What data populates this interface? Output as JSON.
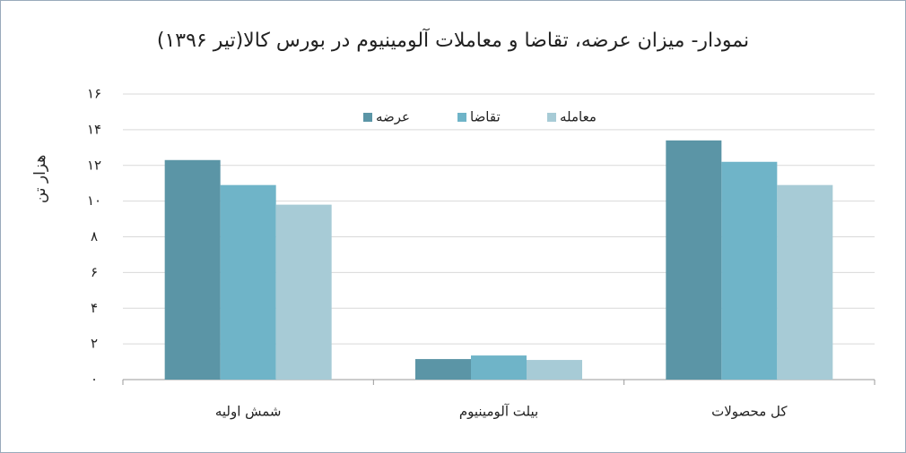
{
  "chart_data": {
    "type": "bar",
    "title": "نمودار- میزان عرضه، تقاضا و معاملات آلومینیوم در بورس کالا(تیر ۱۳۹۶)",
    "y_label": "هزار تن",
    "categories": [
      "شمش اولیه",
      "بیلت آلومینیوم",
      "کل محصولات"
    ],
    "series": [
      {
        "name": "عرضه",
        "color": "#5b95a6",
        "values": [
          12.3,
          1.15,
          13.4
        ]
      },
      {
        "name": "تقاضا",
        "color": "#6fb4c8",
        "values": [
          10.9,
          1.35,
          12.2
        ]
      },
      {
        "name": "معامله",
        "color": "#a7cbd6",
        "values": [
          9.8,
          1.1,
          10.9
        ]
      }
    ],
    "ylim": [
      0,
      16
    ],
    "yticks": [
      {
        "value": 0,
        "label": "۰"
      },
      {
        "value": 2,
        "label": "۲"
      },
      {
        "value": 4,
        "label": "۴"
      },
      {
        "value": 6,
        "label": "۶"
      },
      {
        "value": 8,
        "label": "۸"
      },
      {
        "value": 10,
        "label": "۱۰"
      },
      {
        "value": 12,
        "label": "۱۲"
      },
      {
        "value": 14,
        "label": "۱۴"
      },
      {
        "value": 16,
        "label": "۱۶"
      }
    ],
    "grid": true,
    "legend": "top"
  }
}
